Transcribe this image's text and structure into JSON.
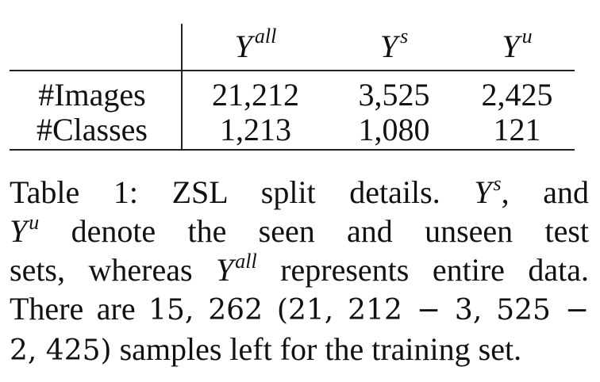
{
  "table": {
    "header": {
      "col1": {
        "base": "Y",
        "sup": "all"
      },
      "col2": {
        "base": "Y",
        "sup": "s"
      },
      "col3": {
        "base": "Y",
        "sup": "u"
      }
    },
    "rows": [
      {
        "label": "#Images",
        "values": [
          "21,212",
          "3,525",
          "2,425"
        ]
      },
      {
        "label": "#Classes",
        "values": [
          "1,213",
          "1,080",
          "121"
        ]
      }
    ]
  },
  "caption": {
    "label": "Table 1:",
    "title": "ZSL split details.",
    "y_s": {
      "base": "Y",
      "sup": "s"
    },
    "and": ", and",
    "y_u": {
      "base": "Y",
      "sup": "u"
    },
    "t1": "denote the seen and unseen test",
    "t2": "sets, whereas",
    "y_all": {
      "base": "Y",
      "sup": "all"
    },
    "t3": "represents entire data.",
    "t4": "There are",
    "math1": "15, 262 (21, 212 − 3, 525 −",
    "math2": "2, 425)",
    "t5": "samples left for the training set."
  }
}
